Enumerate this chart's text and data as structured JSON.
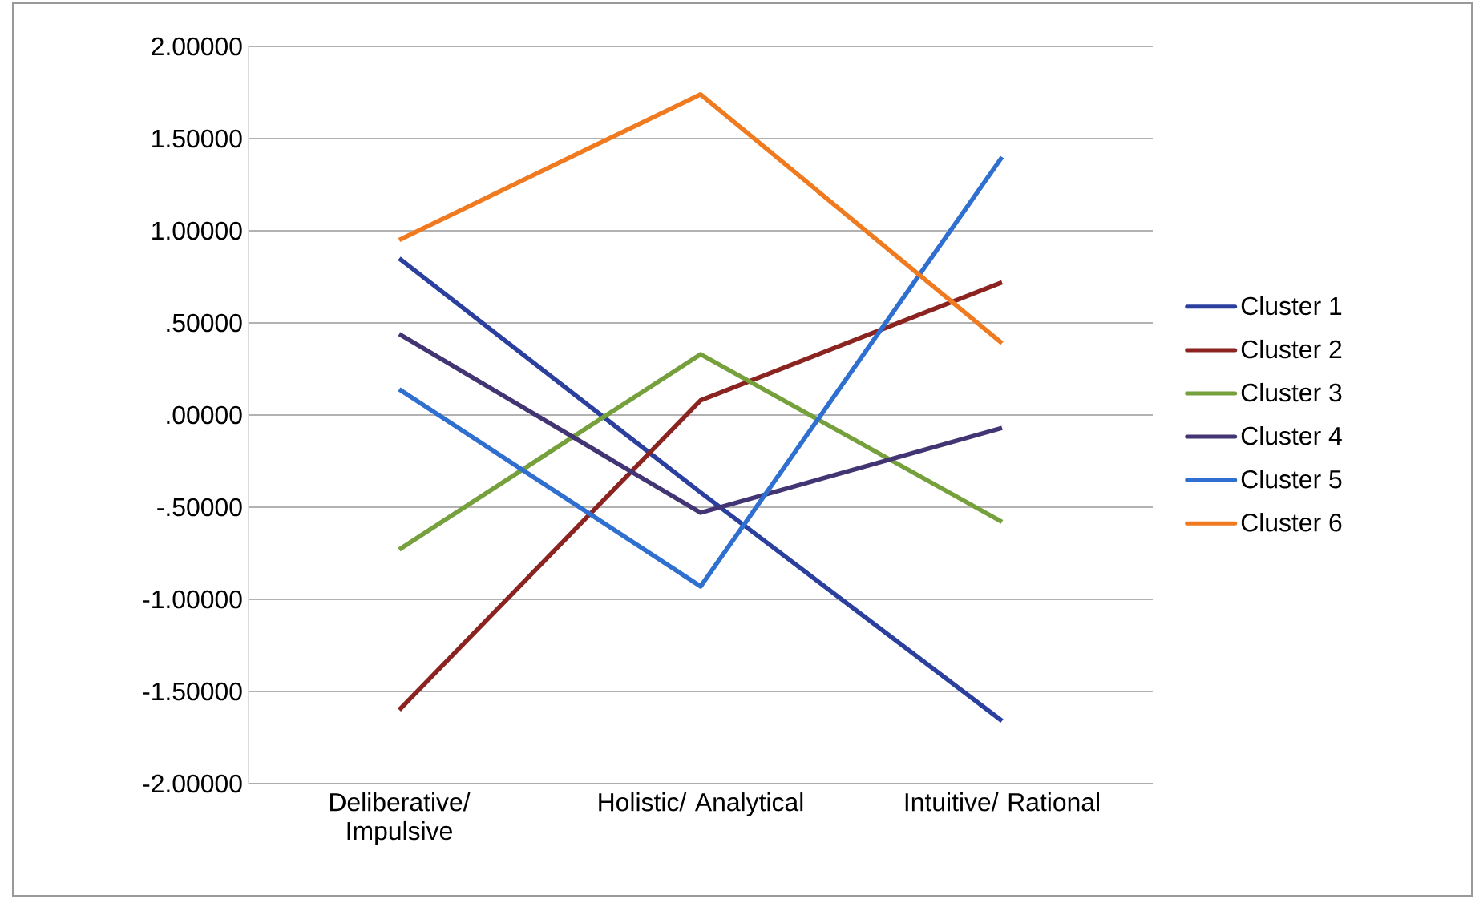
{
  "chart_data": {
    "type": "line",
    "categories": [
      "Deliberative/ Impulsive",
      "Holistic/ Analytical",
      "Intuitive/ Rational"
    ],
    "series": [
      {
        "name": "Cluster 1",
        "color": "#2b3f9e",
        "values": [
          0.85,
          -0.42,
          -1.66
        ]
      },
      {
        "name": "Cluster 2",
        "color": "#8b2420",
        "values": [
          -1.6,
          0.08,
          0.72
        ]
      },
      {
        "name": "Cluster 3",
        "color": "#76a03c",
        "values": [
          -0.73,
          0.33,
          -0.58
        ]
      },
      {
        "name": "Cluster 4",
        "color": "#433473",
        "values": [
          0.44,
          -0.53,
          -0.07
        ]
      },
      {
        "name": "Cluster 5",
        "color": "#2f6fd0",
        "values": [
          0.14,
          -0.93,
          1.4
        ]
      },
      {
        "name": "Cluster 6",
        "color": "#f07a20",
        "values": [
          0.95,
          1.74,
          0.39
        ]
      }
    ],
    "ylim": [
      -2,
      2
    ],
    "yticks": [
      {
        "value": -2,
        "label": "-2.00000"
      },
      {
        "value": -1.5,
        "label": "-1.50000"
      },
      {
        "value": -1,
        "label": "-1.00000"
      },
      {
        "value": -0.5,
        "label": "-.50000"
      },
      {
        "value": 0,
        "label": ".00000"
      },
      {
        "value": 0.5,
        "label": ".50000"
      },
      {
        "value": 1,
        "label": "1.00000"
      },
      {
        "value": 1.5,
        "label": "1.50000"
      },
      {
        "value": 2,
        "label": "2.00000"
      }
    ],
    "grid": "y",
    "legend": "right",
    "marker": "none",
    "line_style": "solid"
  }
}
